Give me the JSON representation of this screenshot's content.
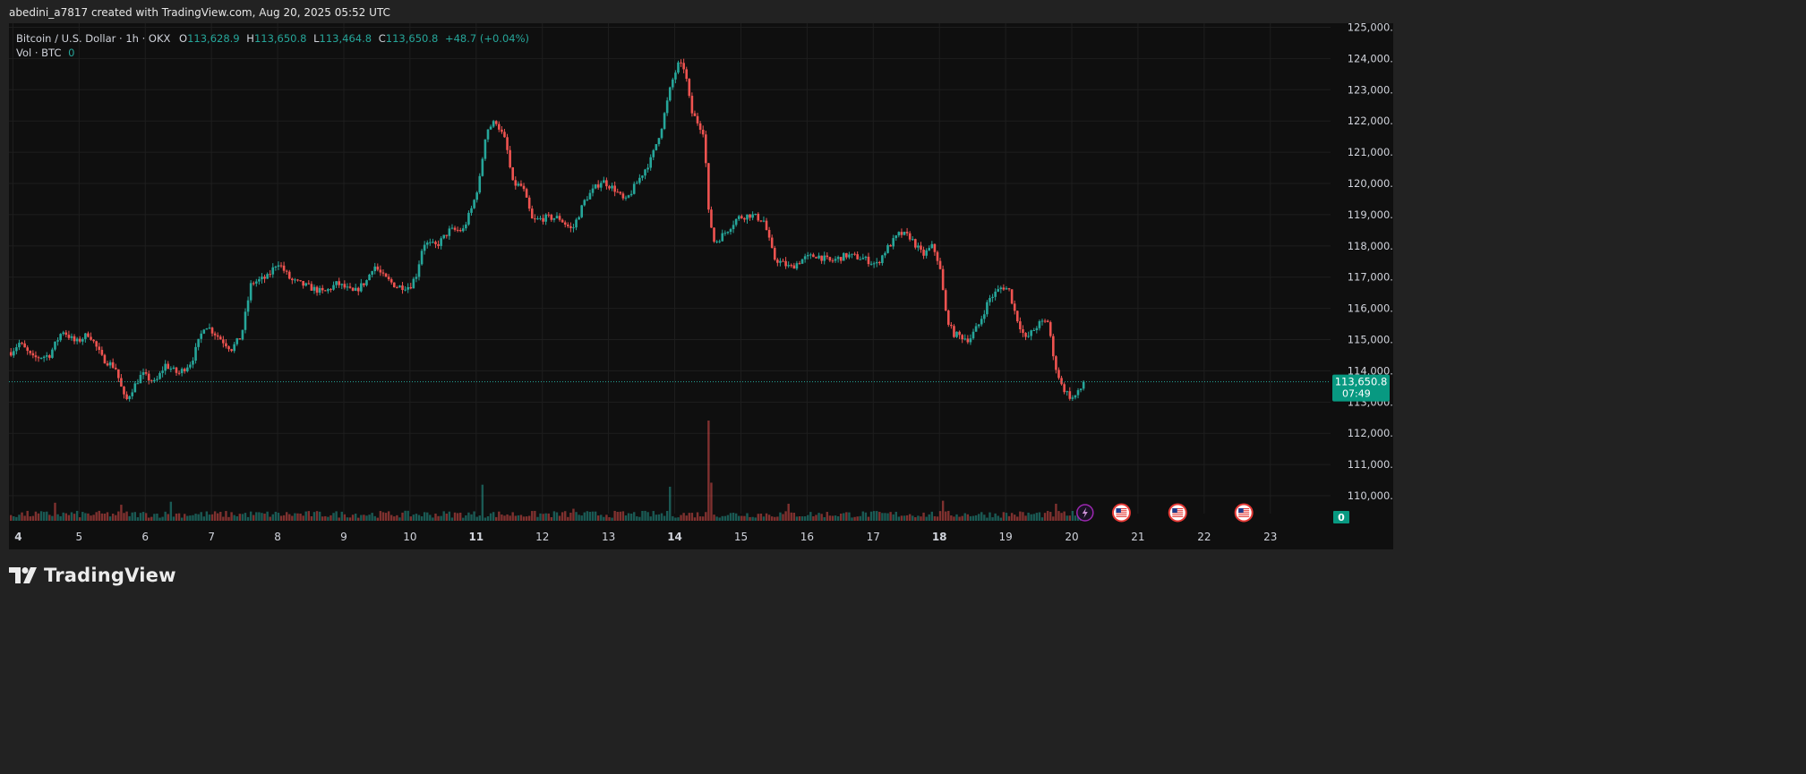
{
  "header": {
    "caption": "abedini_a7817 created with TradingView.com, Aug 20, 2025 05:52 UTC"
  },
  "legend": {
    "symbol": "Bitcoin / U.S. Dollar · 1h · OKX",
    "open_label": "O",
    "open": "113,628.9",
    "high_label": "H",
    "high": "113,650.8",
    "low_label": "L",
    "low": "113,464.8",
    "close_label": "C",
    "close": "113,650.8",
    "change": "+48.7 (+0.04%)",
    "volume_label": "Vol · BTC",
    "volume_value": "0"
  },
  "price_tag": {
    "price": "113,650.8",
    "countdown": "07:49"
  },
  "volume_tag": "0",
  "brand": {
    "name": "TradingView"
  },
  "colors": {
    "up": "#26a69a",
    "down": "#ef5350",
    "background": "#0f0f0f",
    "grid": "#1e1e1e",
    "price_tag": "#089981"
  },
  "events": [
    {
      "icon": "lightning-icon",
      "day": 20.2
    },
    {
      "icon": "us-flag-icon",
      "day": 20.75
    },
    {
      "icon": "us-flag-icon",
      "day": 21.6
    },
    {
      "icon": "us-flag-icon",
      "day": 22.6
    }
  ],
  "chart_data": {
    "type": "candlestick",
    "symbol": "BTCUSD",
    "timeframe": "1h",
    "exchange": "OKX",
    "x_unit": "day of August 2025",
    "x_ticks": [
      {
        "day": 4,
        "label": "4"
      },
      {
        "day": 5,
        "label": "5"
      },
      {
        "day": 6,
        "label": "6"
      },
      {
        "day": 7,
        "label": "7"
      },
      {
        "day": 8,
        "label": "8"
      },
      {
        "day": 9,
        "label": "9"
      },
      {
        "day": 10,
        "label": "10"
      },
      {
        "day": 11,
        "label": "11"
      },
      {
        "day": 12,
        "label": "12"
      },
      {
        "day": 13,
        "label": "13"
      },
      {
        "day": 14,
        "label": "14"
      },
      {
        "day": 15,
        "label": "15"
      },
      {
        "day": 16,
        "label": "16"
      },
      {
        "day": 17,
        "label": "17"
      },
      {
        "day": 18,
        "label": "18"
      },
      {
        "day": 19,
        "label": "19"
      },
      {
        "day": 20,
        "label": "20"
      },
      {
        "day": 21,
        "label": "21"
      },
      {
        "day": 22,
        "label": "22"
      },
      {
        "day": 23,
        "label": "23"
      }
    ],
    "bold_x_ticks": [
      "4",
      "11",
      "14",
      "18"
    ],
    "y_ticks": [
      "125,000.0",
      "124,000.0",
      "123,000.0",
      "122,000.0",
      "121,000.0",
      "120,000.0",
      "119,000.0",
      "118,000.0",
      "117,000.0",
      "116,000.0",
      "115,000.0",
      "114,000.0",
      "113,000.0",
      "112,000.0",
      "111,000.0",
      "110,000.0"
    ],
    "y_range": [
      109700,
      125000
    ],
    "x_range": [
      3.94,
      23.91
    ],
    "last_price": 113650.8,
    "grid": true,
    "price_path": [
      {
        "day": 3.97,
        "price": 114600
      },
      {
        "day": 4.1,
        "price": 114900
      },
      {
        "day": 4.3,
        "price": 114400
      },
      {
        "day": 4.55,
        "price": 114500
      },
      {
        "day": 4.75,
        "price": 115300
      },
      {
        "day": 4.95,
        "price": 114900
      },
      {
        "day": 5.15,
        "price": 115200
      },
      {
        "day": 5.35,
        "price": 114400
      },
      {
        "day": 5.55,
        "price": 114100
      },
      {
        "day": 5.7,
        "price": 113000
      },
      {
        "day": 5.8,
        "price": 113400
      },
      {
        "day": 5.95,
        "price": 113900
      },
      {
        "day": 6.15,
        "price": 113600
      },
      {
        "day": 6.3,
        "price": 114200
      },
      {
        "day": 6.5,
        "price": 113900
      },
      {
        "day": 6.7,
        "price": 114300
      },
      {
        "day": 6.9,
        "price": 115500
      },
      {
        "day": 7.1,
        "price": 115100
      },
      {
        "day": 7.3,
        "price": 114700
      },
      {
        "day": 7.45,
        "price": 115100
      },
      {
        "day": 7.6,
        "price": 116800
      },
      {
        "day": 7.85,
        "price": 117000
      },
      {
        "day": 8.0,
        "price": 117500
      },
      {
        "day": 8.2,
        "price": 116900
      },
      {
        "day": 8.45,
        "price": 116700
      },
      {
        "day": 8.7,
        "price": 116500
      },
      {
        "day": 8.9,
        "price": 116800
      },
      {
        "day": 9.15,
        "price": 116500
      },
      {
        "day": 9.35,
        "price": 116900
      },
      {
        "day": 9.45,
        "price": 117400
      },
      {
        "day": 9.6,
        "price": 117000
      },
      {
        "day": 9.8,
        "price": 116700
      },
      {
        "day": 10.0,
        "price": 116700
      },
      {
        "day": 10.1,
        "price": 117100
      },
      {
        "day": 10.2,
        "price": 118100
      },
      {
        "day": 10.4,
        "price": 118000
      },
      {
        "day": 10.6,
        "price": 118500
      },
      {
        "day": 10.8,
        "price": 118500
      },
      {
        "day": 10.95,
        "price": 119300
      },
      {
        "day": 11.05,
        "price": 120100
      },
      {
        "day": 11.15,
        "price": 121700
      },
      {
        "day": 11.3,
        "price": 122000
      },
      {
        "day": 11.45,
        "price": 121300
      },
      {
        "day": 11.55,
        "price": 120000
      },
      {
        "day": 11.7,
        "price": 119900
      },
      {
        "day": 11.85,
        "price": 118800
      },
      {
        "day": 12.05,
        "price": 118900
      },
      {
        "day": 12.25,
        "price": 118900
      },
      {
        "day": 12.45,
        "price": 118500
      },
      {
        "day": 12.65,
        "price": 119500
      },
      {
        "day": 12.9,
        "price": 120100
      },
      {
        "day": 13.1,
        "price": 119800
      },
      {
        "day": 13.25,
        "price": 119400
      },
      {
        "day": 13.45,
        "price": 120100
      },
      {
        "day": 13.65,
        "price": 120800
      },
      {
        "day": 13.8,
        "price": 121800
      },
      {
        "day": 13.95,
        "price": 123200
      },
      {
        "day": 14.05,
        "price": 123800
      },
      {
        "day": 14.15,
        "price": 123700
      },
      {
        "day": 14.25,
        "price": 122300
      },
      {
        "day": 14.45,
        "price": 121600
      },
      {
        "day": 14.5,
        "price": 119200
      },
      {
        "day": 14.6,
        "price": 118100
      },
      {
        "day": 14.75,
        "price": 118400
      },
      {
        "day": 14.95,
        "price": 118900
      },
      {
        "day": 15.15,
        "price": 119000
      },
      {
        "day": 15.35,
        "price": 118800
      },
      {
        "day": 15.5,
        "price": 117600
      },
      {
        "day": 15.75,
        "price": 117300
      },
      {
        "day": 15.95,
        "price": 117600
      },
      {
        "day": 16.15,
        "price": 117700
      },
      {
        "day": 16.35,
        "price": 117500
      },
      {
        "day": 16.6,
        "price": 117700
      },
      {
        "day": 16.85,
        "price": 117600
      },
      {
        "day": 17.05,
        "price": 117400
      },
      {
        "day": 17.2,
        "price": 117900
      },
      {
        "day": 17.4,
        "price": 118400
      },
      {
        "day": 17.55,
        "price": 118300
      },
      {
        "day": 17.75,
        "price": 117700
      },
      {
        "day": 17.9,
        "price": 118000
      },
      {
        "day": 18.0,
        "price": 117400
      },
      {
        "day": 18.1,
        "price": 115800
      },
      {
        "day": 18.2,
        "price": 115200
      },
      {
        "day": 18.45,
        "price": 115000
      },
      {
        "day": 18.6,
        "price": 115500
      },
      {
        "day": 18.75,
        "price": 116300
      },
      {
        "day": 18.95,
        "price": 116700
      },
      {
        "day": 19.05,
        "price": 116600
      },
      {
        "day": 19.15,
        "price": 115800
      },
      {
        "day": 19.3,
        "price": 115000
      },
      {
        "day": 19.5,
        "price": 115500
      },
      {
        "day": 19.65,
        "price": 115600
      },
      {
        "day": 19.72,
        "price": 114400
      },
      {
        "day": 19.85,
        "price": 113500
      },
      {
        "day": 20.0,
        "price": 113100
      },
      {
        "day": 20.1,
        "price": 113300
      },
      {
        "day": 20.2,
        "price": 113650
      }
    ],
    "volume_spikes": [
      {
        "day": 14.5,
        "volume_fraction": 1.0,
        "direction": "down"
      },
      {
        "day": 14.57,
        "volume_fraction": 0.38,
        "direction": "down"
      },
      {
        "day": 11.1,
        "volume_fraction": 0.36,
        "direction": "up"
      },
      {
        "day": 13.93,
        "volume_fraction": 0.34,
        "direction": "up"
      },
      {
        "day": 18.05,
        "volume_fraction": 0.2,
        "direction": "down"
      },
      {
        "day": 19.75,
        "volume_fraction": 0.17,
        "direction": "down"
      },
      {
        "day": 5.65,
        "volume_fraction": 0.16,
        "direction": "down"
      },
      {
        "day": 6.4,
        "volume_fraction": 0.19,
        "direction": "up"
      },
      {
        "day": 4.65,
        "volume_fraction": 0.18,
        "direction": "down"
      },
      {
        "day": 12.45,
        "volume_fraction": 0.12,
        "direction": "down"
      },
      {
        "day": 15.7,
        "volume_fraction": 0.17,
        "direction": "down"
      }
    ]
  }
}
